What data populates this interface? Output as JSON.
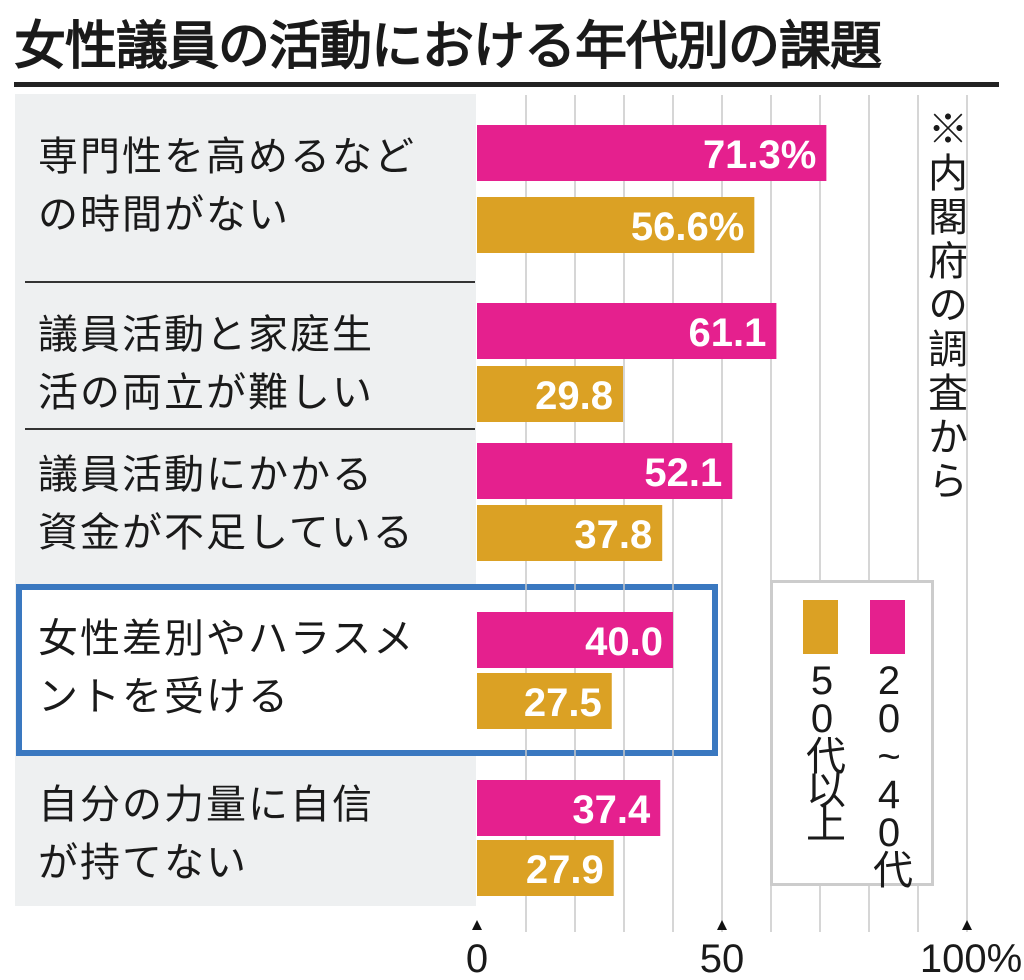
{
  "title": "女性議員の活動における年代別の課題",
  "note": "※内閣府の調査から",
  "colors": {
    "series_20_40": "#e5208e",
    "series_50plus": "#dba124",
    "highlight": "#3a78c0",
    "panel": "#eef0f1"
  },
  "chart_data": {
    "type": "bar",
    "orientation": "horizontal",
    "categories": [
      "専門性を高めるなど\nの時間がない",
      "議員活動と家庭生\n活の両立が難しい",
      "議員活動にかかる\n資金が不足している",
      "女性差別やハラスメ\nントを受ける",
      "自分の力量に自信\nが持てない"
    ],
    "series": [
      {
        "name": "20~40代",
        "values": [
          71.3,
          61.1,
          52.1,
          40.0,
          37.4
        ],
        "labels": [
          "71.3%",
          "61.1",
          "52.1",
          "40.0",
          "37.4"
        ]
      },
      {
        "name": "50代以上",
        "values": [
          56.6,
          29.8,
          37.8,
          27.5,
          27.9
        ],
        "labels": [
          "56.6%",
          "29.8",
          "37.8",
          "27.5",
          "27.9"
        ]
      }
    ],
    "xlim": [
      0,
      100
    ],
    "xticks": [
      "0",
      "50",
      "100%"
    ],
    "grid": "vertical every 10",
    "highlighted_category": 3,
    "legend": {
      "position": "right",
      "entries": [
        "50代以上",
        "20~40代"
      ]
    }
  }
}
